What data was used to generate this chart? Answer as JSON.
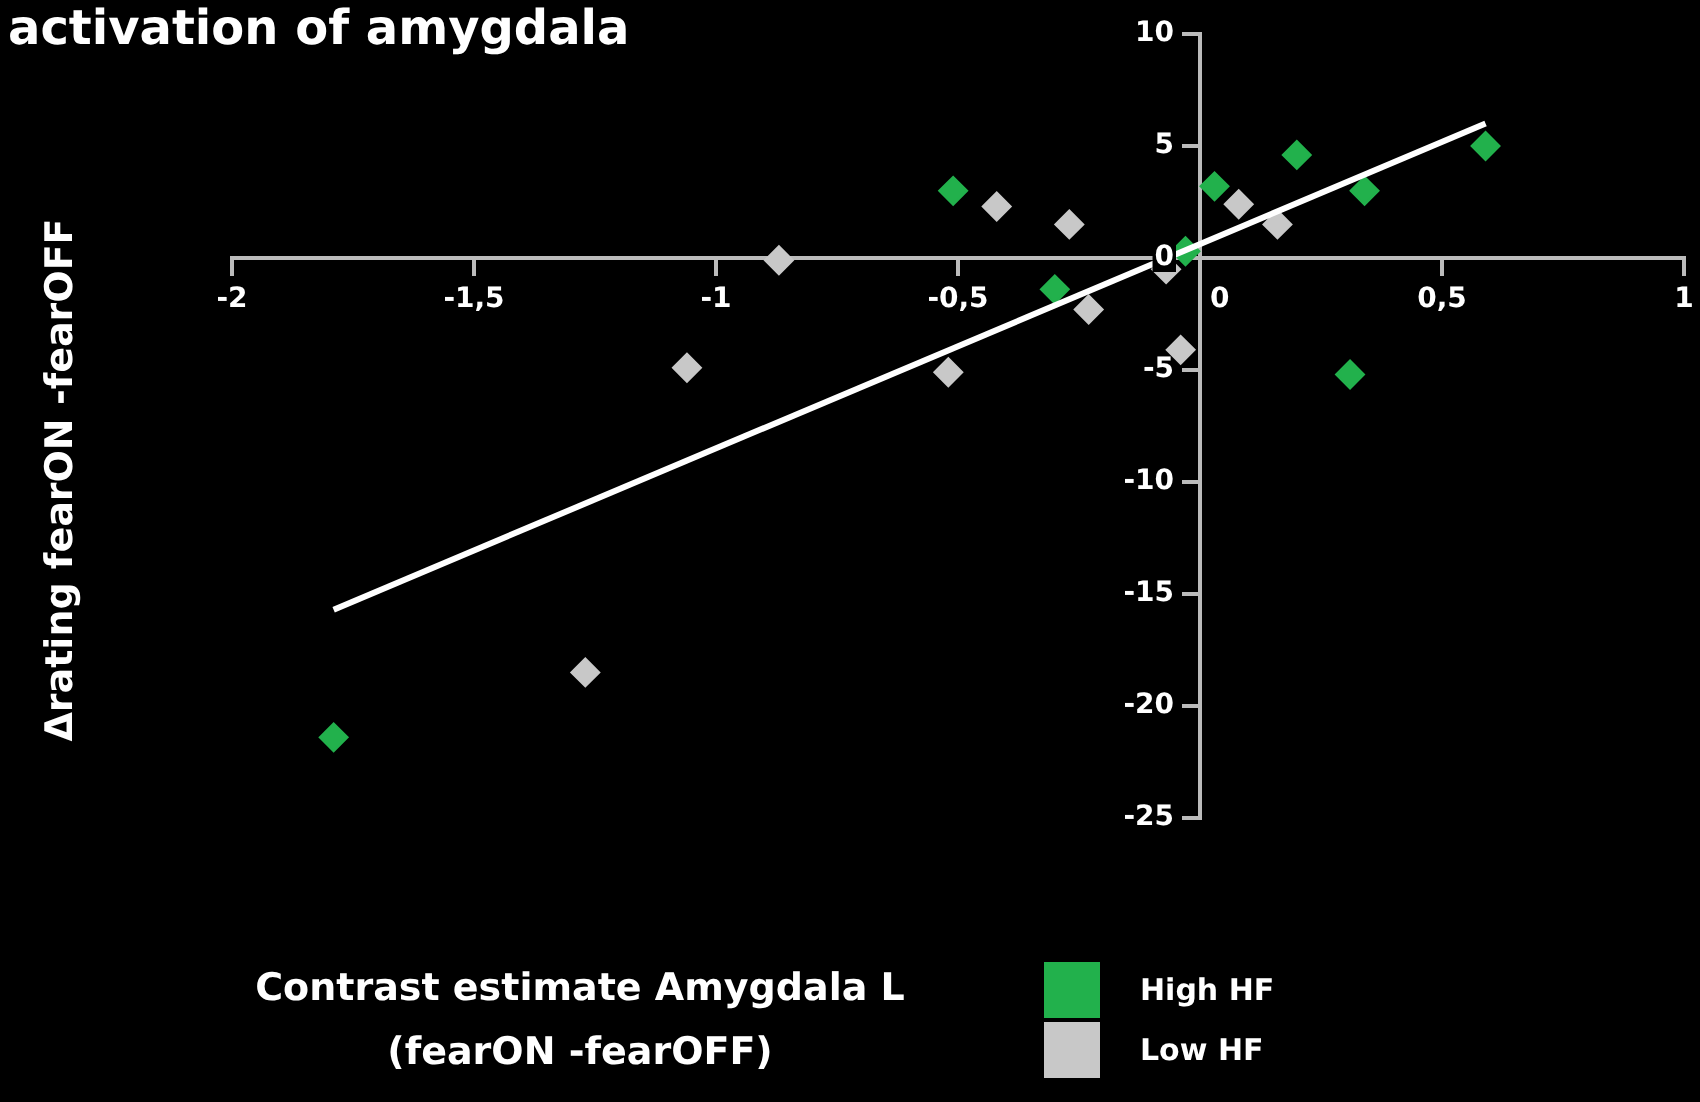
{
  "chart_data": {
    "type": "scatter",
    "title": "activation of amygdala",
    "xlabel": "Contrast estimate Amygdala L\n(fearON -fearOFF)",
    "ylabel": "Δrating fearON -fearOFF",
    "series": [
      {
        "name": "High HF",
        "color": "#22b14c",
        "marker": "diamond",
        "x": [
          -1.79,
          -0.51,
          -0.3,
          -0.03,
          0.03,
          0.2,
          0.34,
          0.31,
          0.59
        ],
        "values": [
          -21.4,
          3.0,
          -1.4,
          0.3,
          3.2,
          4.6,
          3.0,
          -5.2,
          5.0
        ]
      },
      {
        "name": "Low HF",
        "color": "#c8c8c8",
        "marker": "diamond",
        "x": [
          -1.27,
          -1.06,
          -0.87,
          -0.52,
          -0.42,
          -0.27,
          -0.23,
          -0.07,
          -0.04,
          0.08,
          0.16
        ],
        "values": [
          -18.5,
          -4.9,
          -0.1,
          -5.1,
          2.3,
          1.5,
          -2.3,
          -0.5,
          -4.1,
          2.4,
          1.5
        ]
      },
      {
        "type": "line",
        "color": "#ffffff",
        "marker": "none",
        "x": [
          -1.79,
          0.59
        ],
        "values": [
          -15.7,
          6.0
        ]
      }
    ],
    "xlim": [
      -2,
      1
    ],
    "xticks": [
      -2,
      {
        "value": -1.5,
        "label": "-1,5"
      },
      -1,
      {
        "value": -0.5,
        "label": "-0,5"
      },
      0,
      {
        "value": 0.5,
        "label": "0,5"
      },
      1
    ],
    "ylim": [
      -25,
      10
    ],
    "yticks": [
      -25,
      -20,
      -15,
      -10,
      -5,
      0,
      5,
      10
    ],
    "legend": "bottom",
    "grid": false
  }
}
